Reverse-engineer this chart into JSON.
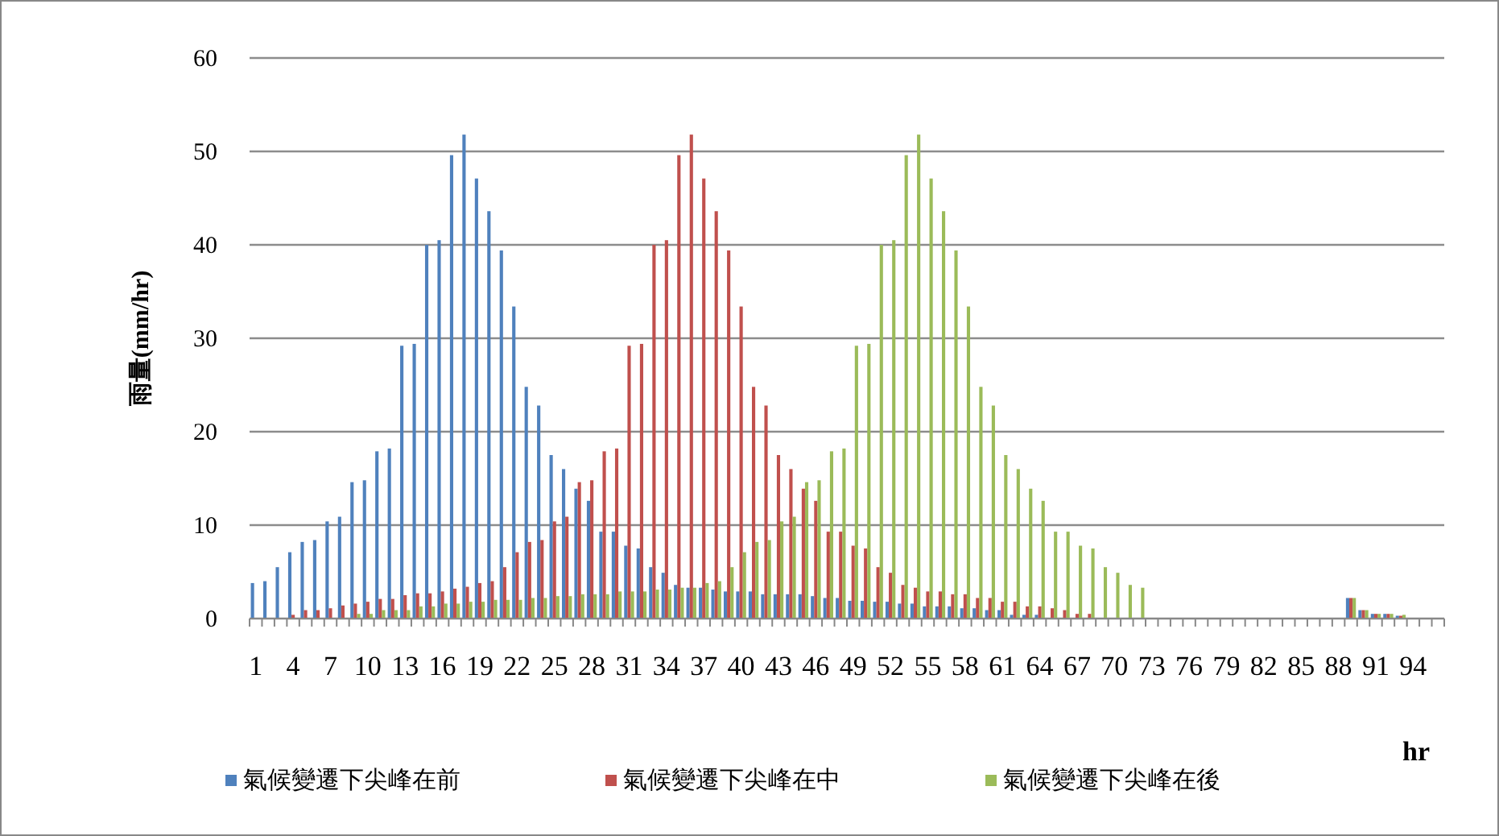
{
  "chart_data": {
    "type": "bar",
    "ylabel": "雨量(mm/hr)",
    "xlabel": "hr",
    "categories": [
      "1",
      null,
      null,
      "4",
      null,
      null,
      "7",
      null,
      null,
      "10",
      null,
      null,
      "13",
      null,
      null,
      "16",
      null,
      null,
      "19",
      null,
      null,
      "22",
      null,
      null,
      "25",
      null,
      null,
      "28",
      null,
      null,
      "31",
      null,
      null,
      "34",
      null,
      null,
      "37",
      null,
      null,
      "40",
      null,
      null,
      "43",
      null,
      null,
      "46",
      null,
      null,
      "49",
      null,
      null,
      "52",
      null,
      null,
      "55",
      null,
      null,
      "58",
      null,
      null,
      "61",
      null,
      null,
      "64",
      null,
      null,
      "67",
      null,
      null,
      "70",
      null,
      null,
      "73",
      null,
      null,
      "76",
      null,
      null,
      "79",
      null,
      null,
      "82",
      null,
      null,
      "85",
      null,
      null,
      "88",
      null,
      null,
      "91",
      null,
      null,
      "94",
      null,
      null
    ],
    "series": [
      {
        "name": "氣候變遷下尖峰在前",
        "color": "#4f81bd",
        "values": [
          3.8,
          4.0,
          5.5,
          7.1,
          8.2,
          8.4,
          10.4,
          10.9,
          14.6,
          14.8,
          17.9,
          18.2,
          29.2,
          29.4,
          40.0,
          40.5,
          49.6,
          51.8,
          47.1,
          43.6,
          39.4,
          33.4,
          24.8,
          22.8,
          17.5,
          16.0,
          13.9,
          12.6,
          9.3,
          9.3,
          7.8,
          7.5,
          5.5,
          4.9,
          3.6,
          3.3,
          3.3,
          3.1,
          2.9,
          2.9,
          2.9,
          2.6,
          2.6,
          2.6,
          2.6,
          2.4,
          2.2,
          2.2,
          1.9,
          1.9,
          1.8,
          1.8,
          1.6,
          1.6,
          1.3,
          1.3,
          1.3,
          1.1,
          1.1,
          0.9,
          0.9,
          0.4,
          0.4,
          0.4,
          0,
          0,
          0,
          0,
          0,
          0,
          0,
          0,
          0,
          0,
          0,
          0,
          0,
          0,
          0,
          0,
          0,
          0,
          0,
          0,
          0,
          0,
          0,
          0,
          2.2,
          0.9,
          0.5,
          0.5,
          0.3,
          0,
          0,
          0
        ]
      },
      {
        "name": "氣候變遷下尖峰在中",
        "color": "#c0504d",
        "values": [
          0,
          0,
          0,
          0.4,
          0.9,
          0.9,
          1.1,
          1.4,
          1.6,
          1.8,
          2.1,
          2.1,
          2.5,
          2.7,
          2.7,
          2.9,
          3.2,
          3.4,
          3.8,
          4.0,
          5.5,
          7.1,
          8.2,
          8.4,
          10.4,
          10.9,
          14.6,
          14.8,
          17.9,
          18.2,
          29.2,
          29.4,
          40.0,
          40.5,
          49.6,
          51.8,
          47.1,
          43.6,
          39.4,
          33.4,
          24.8,
          22.8,
          17.5,
          16.0,
          13.9,
          12.6,
          9.3,
          9.3,
          7.8,
          7.5,
          5.5,
          4.9,
          3.6,
          3.3,
          2.9,
          2.9,
          2.6,
          2.6,
          2.2,
          2.2,
          1.8,
          1.8,
          1.3,
          1.3,
          1.1,
          0.9,
          0.5,
          0.5,
          0,
          0,
          0,
          0,
          0,
          0,
          0,
          0,
          0,
          0,
          0,
          0,
          0,
          0,
          0,
          0,
          0,
          0,
          0,
          0,
          2.2,
          0.9,
          0.5,
          0.5,
          0.3,
          0,
          0,
          0
        ]
      },
      {
        "name": "氣候變遷下尖峰在後",
        "color": "#9bbb59",
        "values": [
          0,
          0,
          0,
          0,
          0,
          0,
          0,
          0,
          0.5,
          0.5,
          0.9,
          0.9,
          0.9,
          1.3,
          1.3,
          1.6,
          1.6,
          1.8,
          1.8,
          2.0,
          2.0,
          2.0,
          2.2,
          2.2,
          2.4,
          2.4,
          2.6,
          2.6,
          2.6,
          2.9,
          2.9,
          2.9,
          3.1,
          3.1,
          3.3,
          3.3,
          3.8,
          4.0,
          5.5,
          7.1,
          8.2,
          8.4,
          10.4,
          10.9,
          14.6,
          14.8,
          17.9,
          18.2,
          29.2,
          29.4,
          40.0,
          40.5,
          49.6,
          51.8,
          47.1,
          43.6,
          39.4,
          33.4,
          24.8,
          22.8,
          17.5,
          16.0,
          13.9,
          12.6,
          9.3,
          9.3,
          7.8,
          7.5,
          5.5,
          4.9,
          3.6,
          3.3,
          0,
          0,
          0,
          0,
          0,
          0,
          0,
          0,
          0,
          0,
          0,
          0,
          0,
          0,
          0,
          0,
          2.2,
          0.9,
          0.5,
          0.5,
          0.4,
          0,
          0,
          0
        ]
      }
    ],
    "ylim": [
      0,
      60
    ],
    "yticks": [
      0,
      10,
      20,
      30,
      40,
      50,
      60
    ],
    "grid": "y",
    "legend": "bottom"
  }
}
